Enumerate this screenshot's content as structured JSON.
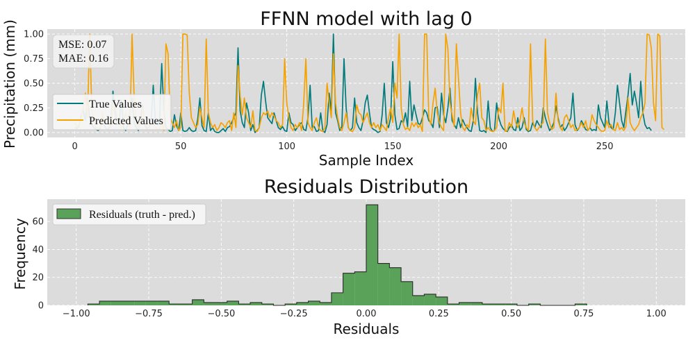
{
  "chart_data": [
    {
      "type": "line",
      "title": "FFNN model with lag 0",
      "xlabel": "Sample Index",
      "ylabel": "Precipitation (mm)",
      "xlim": [
        -13,
        288
      ],
      "ylim": [
        -0.05,
        1.05
      ],
      "xticks": [
        0,
        50,
        100,
        150,
        200,
        250
      ],
      "yticks": [
        0.0,
        0.25,
        0.5,
        0.75,
        1.0
      ],
      "ytick_labels": [
        "0.00",
        "0.25",
        "0.50",
        "0.75",
        "1.00"
      ],
      "grid": true,
      "legend_position": "left",
      "stats_text": [
        "MSE: 0.07",
        "MAE: 0.16"
      ],
      "series": [
        {
          "name": "True Values",
          "color": "#007a7a",
          "values": [
            0.05,
            0.04,
            0.06,
            0.18,
            0.22,
            0.12,
            0.36,
            0.15,
            0.08,
            0.05,
            0.03,
            0.02,
            0.04,
            0.15,
            0.07,
            0.03,
            0.04,
            0.1,
            0.42,
            0.2,
            0.08,
            0.12,
            0.33,
            0.05,
            0.02,
            0.08,
            0.2,
            0.35,
            0.1,
            0.05,
            0.02,
            0.15,
            0.28,
            0.07,
            0.04,
            0.05,
            0.1,
            0.48,
            0.12,
            0.08,
            0.14,
            0.7,
            0.22,
            0.05,
            0.03,
            0.01,
            0.02,
            0.18,
            0.07,
            0.02,
            0.2,
            0.02,
            0.01,
            0.02,
            0.05,
            0.02,
            0.01,
            0.02,
            0.14,
            0.35,
            0.07,
            0.02,
            0.01,
            0.2,
            0.02,
            0.05,
            0.01,
            0.0,
            0.0,
            0.02,
            0.04,
            0.01,
            0.05,
            0.06,
            0.1,
            0.15,
            0.2,
            0.86,
            0.22,
            0.1,
            0.05,
            0.3,
            0.2,
            0.02,
            0.08,
            0.0,
            0.02,
            0.05,
            0.38,
            0.52,
            0.32,
            0.15,
            0.12,
            0.09,
            0.2,
            0.12,
            0.05,
            0.03,
            0.06,
            0.02,
            0.01,
            0.2,
            0.1,
            0.08,
            0.02,
            0.05,
            0.08,
            0.1,
            0.03,
            0.02,
            0.15,
            0.48,
            0.05,
            0.06,
            0.01,
            0.02,
            0.2,
            0.02,
            0.0,
            0.08,
            0.4,
            0.22,
            1.0,
            0.2,
            0.12,
            0.02,
            0.06,
            0.75,
            0.25,
            0.05,
            0.02,
            0.05,
            0.35,
            0.1,
            0.05,
            0.02,
            0.12,
            0.3,
            0.38,
            0.2,
            0.05,
            0.03,
            0.02,
            0.0,
            0.01,
            0.18,
            0.5,
            0.1,
            0.05,
            0.15,
            0.72,
            0.18,
            0.03,
            0.04,
            0.12,
            0.1,
            0.2,
            0.06,
            0.52,
            0.12,
            0.28,
            0.18,
            0.09,
            0.08,
            0.15,
            0.23,
            0.2,
            0.12,
            0.1,
            0.05,
            0.25,
            0.26,
            0.05,
            0.4,
            0.18,
            0.1,
            0.25,
            0.45,
            0.12,
            0.08,
            0.04,
            0.15,
            0.05,
            0.13,
            0.08,
            0.05,
            0.02,
            0.01,
            0.12,
            0.55,
            0.2,
            0.02,
            0.01,
            0.02,
            0.0,
            0.32,
            0.05,
            0.01,
            0.02,
            0.3,
            0.15,
            0.08,
            0.04,
            0.02,
            0.01,
            0.05,
            0.08,
            0.03,
            0.02,
            0.15,
            0.02,
            0.05,
            0.15,
            0.03,
            0.01,
            0.02,
            0.1,
            0.05,
            0.12,
            0.08,
            0.05,
            0.25,
            0.15,
            0.08,
            0.02,
            0.05,
            0.1,
            0.27,
            0.15,
            0.05,
            0.08,
            0.02,
            0.05,
            0.1,
            0.15,
            0.4,
            0.08,
            0.02,
            0.05,
            0.12,
            0.08,
            0.03,
            0.02,
            0.05,
            0.02,
            0.03,
            0.02,
            0.28,
            0.15,
            0.1,
            0.05,
            0.32,
            0.1,
            0.05,
            0.03,
            0.2,
            0.48,
            0.3,
            0.12,
            0.05,
            0.22,
            0.38,
            0.6,
            0.28,
            0.42,
            0.3,
            0.15,
            0.52,
            0.2,
            0.08,
            0.04,
            0.05,
            0.02
          ],
          "x_start": 0
        },
        {
          "name": "Predicted Values",
          "color": "#f5a200",
          "values": [
            0.1,
            0.05,
            0.08,
            0.15,
            0.25,
            0.4,
            0.15,
            1.0,
            0.25,
            0.1,
            0.05,
            0.03,
            0.05,
            0.2,
            0.1,
            0.15,
            0.08,
            0.05,
            0.3,
            0.25,
            0.15,
            0.08,
            0.04,
            0.12,
            0.2,
            0.1,
            0.05,
            1.0,
            0.35,
            0.1,
            0.05,
            0.08,
            0.25,
            0.1,
            0.06,
            0.04,
            0.08,
            0.1,
            0.05,
            0.03,
            0.04,
            0.1,
            0.02,
            0.9,
            0.8,
            0.15,
            0.1,
            0.05,
            0.12,
            0.02,
            0.05,
            1.0,
            1.0,
            0.99,
            0.4,
            0.15,
            0.1,
            0.05,
            0.08,
            0.25,
            0.15,
            0.05,
            0.95,
            0.2,
            0.1,
            0.05,
            0.08,
            0.02,
            0.05,
            0.1,
            0.08,
            0.05,
            0.1,
            0.12,
            0.02,
            0.2,
            0.05,
            0.68,
            0.38,
            0.18,
            0.35,
            0.15,
            0.1,
            0.05,
            0.22,
            0.02,
            0.01,
            0.05,
            0.15,
            0.2,
            0.18,
            0.22,
            0.15,
            0.2,
            0.17,
            0.12,
            0.1,
            0.05,
            0.08,
            0.75,
            0.3,
            0.15,
            0.05,
            0.02,
            0.08,
            0.05,
            0.1,
            0.02,
            0.3,
            0.75,
            0.1,
            0.05,
            0.02,
            0.1,
            0.15,
            0.05,
            0.02,
            0.01,
            0.05,
            0.5,
            0.3,
            0.15,
            0.8,
            0.3,
            0.15,
            0.05,
            0.02,
            0.1,
            0.2,
            0.05,
            0.02,
            0.01,
            0.05,
            0.28,
            0.2,
            0.18,
            0.1,
            0.15,
            0.2,
            0.1,
            0.05,
            0.1,
            0.05,
            0.08,
            0.02,
            0.08,
            0.05,
            0.02,
            0.15,
            0.25,
            0.1,
            0.5,
            0.35,
            1.0,
            0.25,
            0.08,
            0.03,
            0.05,
            0.02,
            0.1,
            0.06,
            0.1,
            0.05,
            0.08,
            0.01,
            1.0,
            1.0,
            0.15,
            0.08,
            0.3,
            0.45,
            0.2,
            0.1,
            0.05,
            0.02,
            1.0,
            0.85,
            0.3,
            0.18,
            0.06,
            0.9,
            0.55,
            0.2,
            0.05,
            0.02,
            0.08,
            0.05,
            0.25,
            0.12,
            0.08,
            0.38,
            0.5,
            0.15,
            0.12,
            0.02,
            0.05,
            0.02,
            0.01,
            0.02,
            0.05,
            0.25,
            0.2,
            0.5,
            0.01,
            0.02,
            0.1,
            0.05,
            0.22,
            0.1,
            0.05,
            0.12,
            0.25,
            0.1,
            0.05,
            0.02,
            0.9,
            0.12,
            0.05,
            0.02,
            0.05,
            0.08,
            0.1,
            0.95,
            0.2,
            0.1,
            0.03,
            0.05,
            0.4,
            0.12,
            0.05,
            0.02,
            0.15,
            0.18,
            0.12,
            0.05,
            0.08,
            0.02,
            0.03,
            0.05,
            0.1,
            0.05,
            0.12,
            0.02,
            0.05,
            0.18,
            0.12,
            0.08,
            0.05,
            0.02,
            0.01,
            0.02,
            0.12,
            0.05,
            0.08,
            0.03,
            0.02,
            0.1,
            0.03,
            0.05,
            0.02,
            0.06,
            0.35,
            0.1,
            0.05,
            0.02,
            0.05,
            0.08,
            0.15,
            0.2,
            0.3,
            1.0,
            0.99,
            0.85,
            0.3,
            0.12,
            1.0,
            0.98,
            0.05,
            0.03
          ],
          "x_start": 0
        }
      ]
    },
    {
      "type": "bar",
      "title": "Residuals Distribution",
      "xlabel": "Residuals",
      "ylabel": "Frequency",
      "xlim": [
        -1.1,
        1.1
      ],
      "ylim": [
        0,
        76
      ],
      "xticks": [
        -1.0,
        -0.75,
        -0.5,
        -0.25,
        0.0,
        0.25,
        0.5,
        0.75,
        1.0
      ],
      "xtick_labels": [
        "−1.00",
        "−0.75",
        "−0.50",
        "−0.25",
        "0.00",
        "0.25",
        "0.50",
        "0.75",
        "1.00"
      ],
      "yticks": [
        0,
        20,
        40,
        60
      ],
      "grid": true,
      "legend_position": "top-left",
      "series": [
        {
          "name": "Residuals (truth - pred.)",
          "color": "#5aa15a",
          "bin_edges": [
            -0.96,
            -0.92,
            -0.88,
            -0.84,
            -0.8,
            -0.76,
            -0.72,
            -0.68,
            -0.64,
            -0.6,
            -0.56,
            -0.52,
            -0.48,
            -0.44,
            -0.4,
            -0.36,
            -0.32,
            -0.28,
            -0.24,
            -0.2,
            -0.16,
            -0.12,
            -0.08,
            -0.04,
            0.0,
            0.04,
            0.08,
            0.12,
            0.16,
            0.2,
            0.24,
            0.28,
            0.32,
            0.36,
            0.4,
            0.44,
            0.48,
            0.52,
            0.56,
            0.6,
            0.64,
            0.68,
            0.72,
            0.76
          ],
          "counts": [
            1,
            3,
            3,
            3,
            3,
            3,
            3,
            1,
            1,
            4,
            2,
            2,
            3,
            1,
            2,
            1,
            0,
            1,
            2,
            3,
            2,
            9,
            23,
            24,
            72,
            30,
            27,
            17,
            7,
            8,
            6,
            1,
            2,
            2,
            1,
            1,
            1,
            0,
            1,
            0,
            0,
            0,
            1
          ]
        }
      ]
    }
  ]
}
